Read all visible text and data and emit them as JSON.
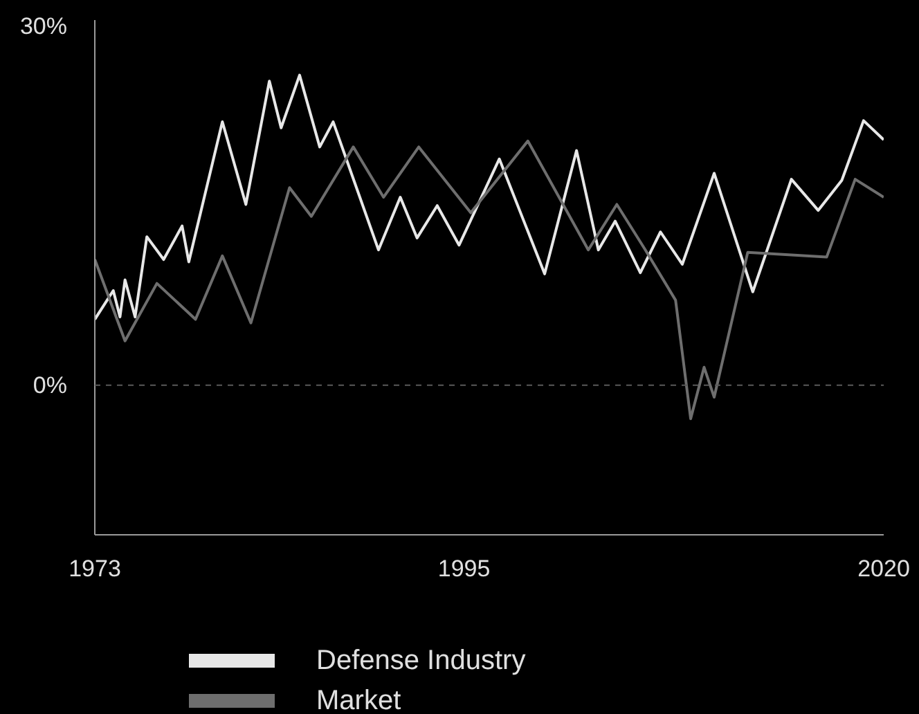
{
  "chart_data": {
    "type": "line",
    "xlim": [
      1973,
      2020
    ],
    "xticks": [
      1973,
      1995,
      2020
    ],
    "ylim": [
      -12.5,
      30.5
    ],
    "yticks": [
      {
        "value": 0,
        "label": "0%"
      },
      {
        "value": 30,
        "label": "30%"
      }
    ],
    "grid": false,
    "legend": "bottom",
    "marker": "none",
    "line_style": "solid",
    "ref_lines": [
      {
        "axis": "y",
        "value": 0,
        "line_style": "dashed",
        "color": "#5a5a5a"
      }
    ],
    "series": [
      {
        "name": "Defense Industry",
        "color": "#e8e8e8",
        "x": [
          1973,
          1974.1,
          1974.5,
          1974.8,
          1975.4,
          1976.1,
          1977.1,
          1978.2,
          1978.6,
          1980.6,
          1982.0,
          1983.4,
          1984.1,
          1985.2,
          1986.4,
          1987.2,
          1989.9,
          1991.2,
          1992.2,
          1993.4,
          1994.7,
          1997.1,
          1999.8,
          2001.7,
          2003.0,
          2004.0,
          2005.5,
          2006.7,
          2008.0,
          2009.9,
          2012.2,
          2014.5,
          2016.1,
          2017.5,
          2018.8,
          2020
        ],
        "values": [
          5.5,
          7.9,
          5.7,
          8.8,
          5.7,
          12.4,
          10.5,
          13.3,
          10.3,
          22.0,
          15.1,
          25.4,
          21.5,
          25.9,
          19.9,
          22.0,
          11.3,
          15.7,
          12.3,
          15.0,
          11.7,
          18.9,
          9.3,
          19.6,
          11.3,
          13.7,
          9.4,
          12.8,
          10.1,
          17.7,
          7.8,
          17.2,
          14.6,
          17.1,
          22.1,
          20.5
        ]
      },
      {
        "name": "Market",
        "color": "#6e6e6e",
        "x": [
          1973,
          1974.8,
          1976.7,
          1979.0,
          1980.6,
          1982.3,
          1984.6,
          1985.9,
          1988.4,
          1990.2,
          1992.3,
          1995.4,
          1998.8,
          2002.4,
          2004.1,
          2005.8,
          2007.6,
          2008.5,
          2009.3,
          2009.9,
          2011.9,
          2016.6,
          2018.3,
          2020
        ],
        "values": [
          10.5,
          3.7,
          8.5,
          5.5,
          10.8,
          5.2,
          16.5,
          14.1,
          19.9,
          15.7,
          19.9,
          14.4,
          20.4,
          11.3,
          15.1,
          11.3,
          7.1,
          -2.8,
          1.5,
          -1.0,
          11.1,
          10.7,
          17.2,
          15.7
        ]
      }
    ]
  }
}
